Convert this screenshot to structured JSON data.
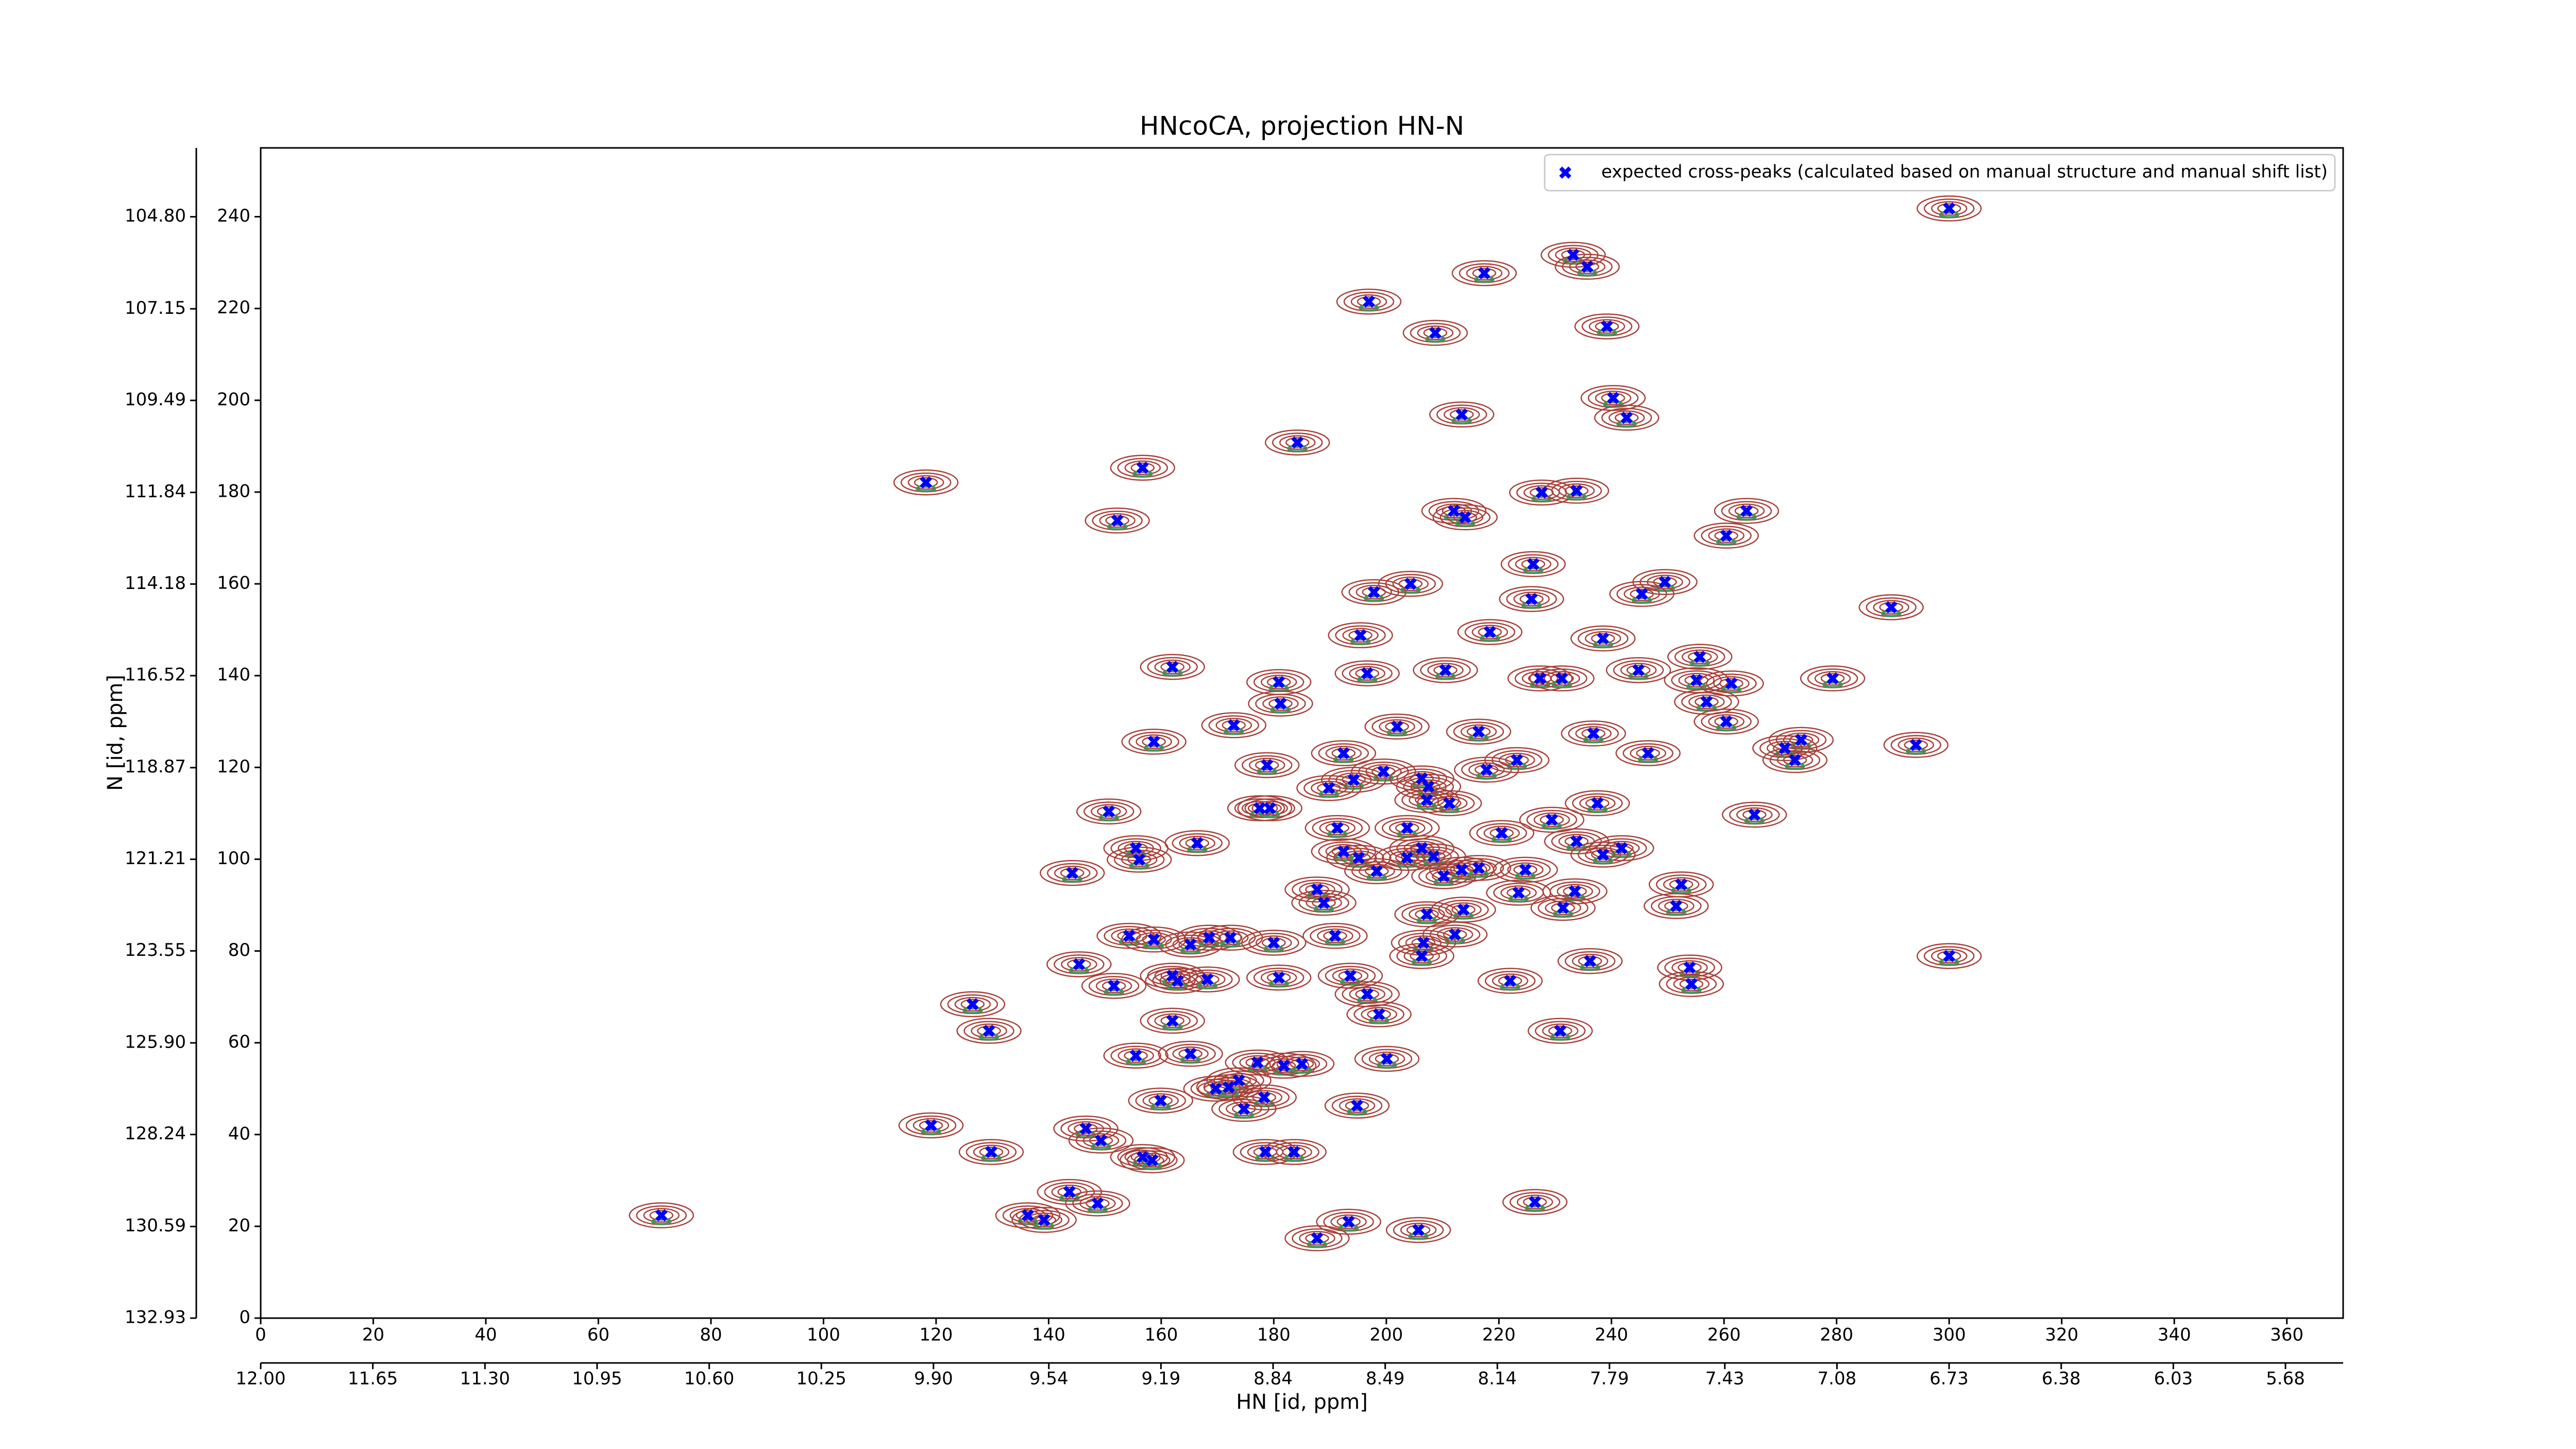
{
  "chart_data": {
    "type": "scatter",
    "title": "HNcoCA, projection HN-N",
    "x_label": "HN [id, ppm]",
    "y_label": "N [id, ppm]",
    "xlim": [
      0,
      370
    ],
    "ylim": [
      0,
      255
    ],
    "xticks": [
      0,
      20,
      40,
      60,
      80,
      100,
      120,
      140,
      160,
      180,
      200,
      220,
      240,
      260,
      280,
      300,
      320,
      340,
      360
    ],
    "yticks": [
      0,
      20,
      40,
      60,
      80,
      100,
      120,
      140,
      160,
      180,
      200,
      220,
      240
    ],
    "x2lim": [
      12,
      5.5
    ],
    "x2ticks": [
      {
        "value": 12,
        "label": "12.00"
      },
      11.65,
      {
        "value": 11.3,
        "label": "11.30"
      },
      10.95,
      {
        "value": 10.6,
        "label": "10.60"
      },
      10.25,
      {
        "value": 9.9,
        "label": "9.90"
      },
      9.54,
      9.19,
      8.84,
      8.49,
      8.14,
      7.79,
      7.43,
      7.08,
      6.73,
      6.38,
      6.03,
      5.68
    ],
    "y2lim": [
      132.93,
      103.04
    ],
    "y2ticks": [
      132.93,
      130.59,
      128.24,
      {
        "value": 125.9,
        "label": "125.90"
      },
      123.55,
      121.21,
      118.87,
      116.52,
      114.18,
      111.84,
      109.49,
      107.15,
      {
        "value": 104.8,
        "label": "104.80"
      }
    ],
    "legend": "upper right",
    "contour_color": "#a8413a",
    "contour_inner_color": "#3a9a5a",
    "series": [
      {
        "name": "expected cross-peaks (calculated based on manual structure and manual shift list)",
        "color": "#0000ff",
        "x": [
          300.0,
          233.2,
          235.7,
          217.4,
          196.9,
          239.2,
          208.7,
          240.3,
          242.7,
          213.4,
          184.2,
          156.7,
          118.2,
          227.6,
          233.8,
          212.0,
          214.0,
          264.0,
          152.2,
          260.4,
          226.1,
          204.3,
          197.8,
          249.5,
          245.4,
          225.8,
          289.7,
          218.4,
          195.4,
          238.5,
          255.7,
          162.0,
          210.5,
          196.6,
          180.9,
          244.8,
          227.3,
          231.2,
          255.1,
          261.3,
          279.3,
          256.9,
          181.2,
          172.9,
          201.9,
          260.4,
          236.8,
          216.4,
          158.7,
          273.7,
          294.1,
          192.4,
          246.5,
          270.8,
          272.6,
          178.8,
          223.2,
          217.8,
          199.5,
          206.3,
          207.5,
          194.2,
          189.8,
          211.2,
          237.5,
          150.7,
          177.5,
          179.3,
          207.2,
          265.4,
          191.3,
          229.4,
          220.5,
          203.7,
          233.8,
          192.4,
          166.4,
          155.5,
          156.1,
          241.8,
          238.5,
          206.3,
          195.1,
          203.7,
          208.4,
          144.2,
          198.3,
          210.2,
          213.4,
          216.4,
          224.7,
          252.4,
          187.7,
          223.5,
          233.5,
          188.9,
          231.4,
          251.5,
          213.7,
          207.2,
          154.3,
          158.7,
          165.2,
          168.5,
          172.3,
          180.0,
          190.9,
          212.2,
          206.6,
          206.3,
          145.4,
          236.2,
          300.0,
          162.0,
          162.9,
          151.6,
          168.2,
          180.9,
          193.6,
          222.0,
          253.9,
          254.2,
          196.6,
          198.7,
          126.5,
          129.4,
          162.0,
          230.9,
          155.5,
          165.2,
          177.1,
          181.8,
          185.0,
          200.1,
          173.8,
          169.7,
          172.0,
          178.3,
          174.7,
          159.9,
          194.8,
          119.1,
          146.6,
          149.3,
          129.8,
          178.5,
          183.6,
          156.7,
          158.4,
          143.7,
          148.7,
          226.4,
          136.3,
          139.2,
          71.2,
          193.3,
          187.7,
          205.7
        ],
        "values": [
          241.8,
          231.7,
          229.1,
          227.7,
          221.5,
          216.1,
          214.7,
          200.5,
          196.2,
          196.9,
          190.8,
          185.3,
          182.1,
          179.9,
          180.3,
          175.9,
          174.5,
          175.9,
          173.8,
          170.5,
          164.3,
          160.0,
          158.2,
          160.4,
          157.8,
          156.7,
          154.9,
          149.5,
          148.8,
          148.1,
          144.1,
          141.9,
          141.2,
          140.5,
          138.6,
          141.2,
          139.4,
          139.4,
          139.0,
          138.3,
          139.4,
          134.3,
          133.9,
          129.2,
          128.9,
          130.0,
          127.4,
          127.8,
          125.6,
          126.0,
          124.9,
          123.1,
          123.1,
          124.2,
          121.6,
          120.5,
          121.6,
          119.5,
          119.1,
          117.6,
          115.8,
          117.3,
          115.5,
          112.2,
          112.2,
          110.4,
          111.1,
          111.1,
          112.9,
          109.7,
          106.8,
          108.6,
          105.7,
          106.8,
          103.9,
          101.7,
          103.5,
          102.4,
          99.9,
          102.4,
          101.0,
          102.4,
          100.3,
          100.3,
          100.6,
          97.0,
          97.4,
          96.3,
          97.7,
          98.1,
          97.7,
          94.5,
          93.4,
          92.7,
          93.0,
          90.5,
          89.4,
          89.8,
          89.0,
          88.0,
          83.3,
          82.5,
          81.4,
          82.9,
          82.9,
          81.8,
          83.3,
          83.6,
          81.8,
          78.9,
          77.1,
          77.8,
          78.9,
          74.6,
          73.5,
          72.4,
          73.8,
          74.2,
          74.6,
          73.5,
          76.4,
          72.8,
          70.6,
          66.2,
          68.4,
          62.6,
          64.8,
          62.6,
          57.2,
          57.6,
          55.7,
          55.0,
          55.4,
          56.5,
          51.8,
          50.0,
          50.3,
          48.1,
          45.6,
          47.4,
          46.3,
          42.0,
          41.3,
          38.7,
          36.2,
          36.2,
          36.2,
          35.1,
          34.4,
          27.5,
          25.0,
          25.3,
          22.4,
          21.4,
          22.4,
          21.0,
          17.4,
          19.2
        ]
      }
    ]
  }
}
